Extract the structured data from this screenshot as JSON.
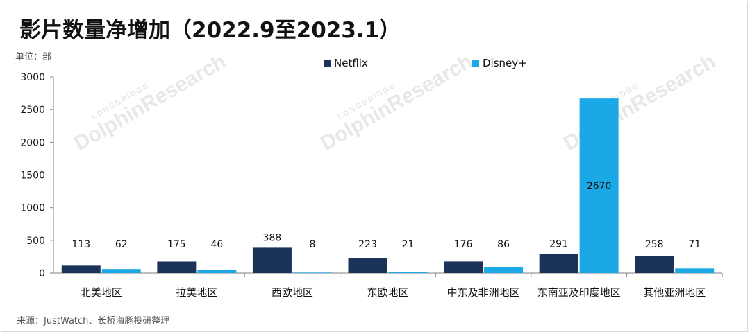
{
  "title": "影片数量净增加（2022.9至2023.1）",
  "unit_label": "单位：部",
  "source": "来源：JustWatch、长桥海豚投研整理",
  "watermark": {
    "line1": "LONGBRIDGE",
    "line2": "DolphinResearch"
  },
  "colors": {
    "netflix": "#1b3358",
    "disney": "#1aa9e6",
    "axis": "#7f7f7f",
    "text": "#111111"
  },
  "chart_data": {
    "type": "bar",
    "title": "影片数量净增加（2022.9至2023.1）",
    "ylabel": "单位：部",
    "xlabel": "",
    "ylim": [
      0,
      3000
    ],
    "yticks": [
      0,
      500,
      1000,
      1500,
      2000,
      2500,
      3000
    ],
    "grid": false,
    "legend_position": "top-center",
    "categories": [
      "北美地区",
      "拉美地区",
      "西欧地区",
      "东欧地区",
      "中东及非洲地区",
      "东南亚及印度地区",
      "其他亚洲地区"
    ],
    "series": [
      {
        "name": "Netflix",
        "values": [
          113,
          175,
          388,
          223,
          176,
          291,
          258
        ]
      },
      {
        "name": "Disney+",
        "values": [
          62,
          46,
          8,
          21,
          86,
          2670,
          71
        ]
      }
    ]
  }
}
